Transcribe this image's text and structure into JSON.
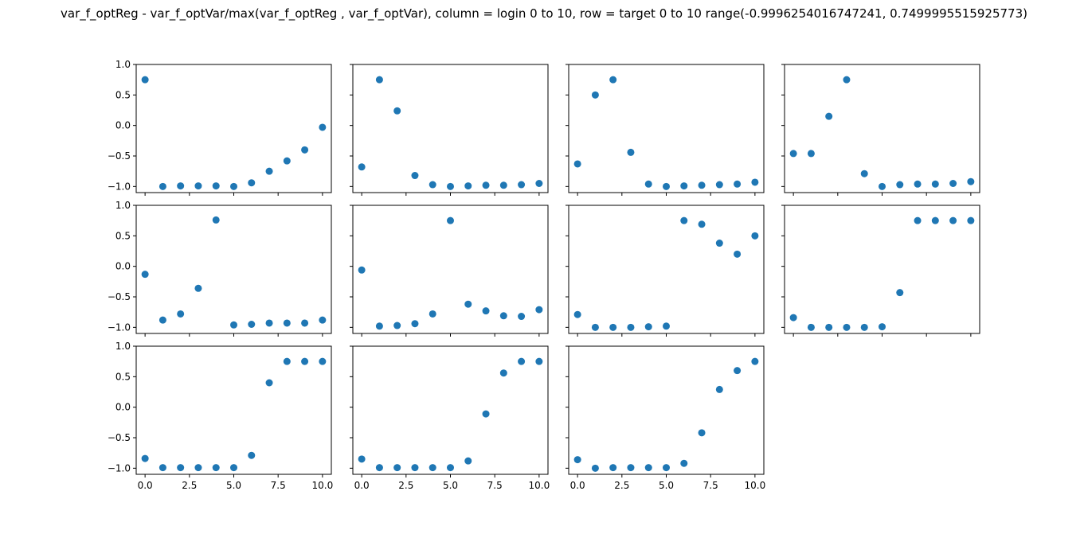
{
  "figure": {
    "title": "var_f_optReg - var_f_optVar/max(var_f_optReg , var_f_optVar), column = login 0 to 10, row = target 0 to 10 range(-0.9996254016747241, 0.7499995515925773)"
  },
  "chart_data": [
    {
      "type": "scatter",
      "x": [
        0,
        1,
        2,
        3,
        4,
        5,
        6,
        7,
        8,
        9,
        10
      ],
      "values": [
        0.75,
        -1.0,
        -0.99,
        -0.99,
        -0.99,
        -1.0,
        -0.94,
        -0.75,
        -0.58,
        -0.4,
        -0.03
      ],
      "xlim": [
        -0.5,
        10.5
      ],
      "ylim": [
        -1.1,
        1.0
      ]
    },
    {
      "type": "scatter",
      "x": [
        0,
        1,
        2,
        3,
        4,
        5,
        6,
        7,
        8,
        9,
        10
      ],
      "values": [
        -0.68,
        0.75,
        0.24,
        -0.82,
        -0.97,
        -1.0,
        -0.99,
        -0.98,
        -0.98,
        -0.97,
        -0.95
      ],
      "xlim": [
        -0.5,
        10.5
      ],
      "ylim": [
        -1.1,
        1.0
      ]
    },
    {
      "type": "scatter",
      "x": [
        0,
        1,
        2,
        3,
        4,
        5,
        6,
        7,
        8,
        9,
        10
      ],
      "values": [
        -0.63,
        0.5,
        0.75,
        -0.44,
        -0.96,
        -1.0,
        -0.99,
        -0.98,
        -0.97,
        -0.96,
        -0.93
      ],
      "xlim": [
        -0.5,
        10.5
      ],
      "ylim": [
        -1.1,
        1.0
      ]
    },
    {
      "type": "scatter",
      "x": [
        0,
        1,
        2,
        3,
        4,
        5,
        6,
        7,
        8,
        9,
        10
      ],
      "values": [
        -0.46,
        -0.46,
        0.15,
        0.75,
        -0.79,
        -1.0,
        -0.97,
        -0.96,
        -0.96,
        -0.95,
        -0.92
      ],
      "xlim": [
        -0.5,
        10.5
      ],
      "ylim": [
        -1.1,
        1.0
      ]
    },
    {
      "type": "scatter",
      "x": [
        0,
        1,
        2,
        3,
        4,
        5,
        6,
        7,
        8,
        9,
        10
      ],
      "values": [
        -0.13,
        -0.88,
        -0.78,
        -0.36,
        0.76,
        -0.96,
        -0.95,
        -0.93,
        -0.93,
        -0.93,
        -0.88
      ],
      "xlim": [
        -0.5,
        10.5
      ],
      "ylim": [
        -1.1,
        1.0
      ]
    },
    {
      "type": "scatter",
      "x": [
        0,
        1,
        2,
        3,
        4,
        5,
        6,
        7,
        8,
        9,
        10
      ],
      "values": [
        -0.06,
        -0.98,
        -0.97,
        -0.94,
        -0.78,
        0.75,
        -0.62,
        -0.73,
        -0.81,
        -0.82,
        -0.71
      ],
      "xlim": [
        -0.5,
        10.5
      ],
      "ylim": [
        -1.1,
        1.0
      ]
    },
    {
      "type": "scatter",
      "x": [
        0,
        1,
        2,
        3,
        4,
        5,
        6,
        7,
        8,
        9,
        10
      ],
      "values": [
        -0.79,
        -1.0,
        -1.0,
        -1.0,
        -0.99,
        -0.98,
        0.75,
        0.69,
        0.38,
        0.2,
        0.5
      ],
      "xlim": [
        -0.5,
        10.5
      ],
      "ylim": [
        -1.1,
        1.0
      ]
    },
    {
      "type": "scatter",
      "x": [
        0,
        1,
        2,
        3,
        4,
        5,
        6,
        7,
        8,
        9,
        10
      ],
      "values": [
        -0.84,
        -1.0,
        -1.0,
        -1.0,
        -1.0,
        -0.99,
        -0.43,
        0.75,
        0.75,
        0.75,
        0.75
      ],
      "xlim": [
        -0.5,
        10.5
      ],
      "ylim": [
        -1.1,
        1.0
      ]
    },
    {
      "type": "scatter",
      "x": [
        0,
        1,
        2,
        3,
        4,
        5,
        6,
        7,
        8,
        9,
        10
      ],
      "values": [
        -0.84,
        -0.99,
        -0.99,
        -0.99,
        -0.99,
        -0.99,
        -0.79,
        0.4,
        0.75,
        0.75,
        0.75
      ],
      "xlim": [
        -0.5,
        10.5
      ],
      "ylim": [
        -1.1,
        1.0
      ]
    },
    {
      "type": "scatter",
      "x": [
        0,
        1,
        2,
        3,
        4,
        5,
        6,
        7,
        8,
        9,
        10
      ],
      "values": [
        -0.85,
        -0.99,
        -0.99,
        -0.99,
        -0.99,
        -0.99,
        -0.88,
        -0.11,
        0.56,
        0.75,
        0.75
      ],
      "xlim": [
        -0.5,
        10.5
      ],
      "ylim": [
        -1.1,
        1.0
      ]
    },
    {
      "type": "scatter",
      "x": [
        0,
        1,
        2,
        3,
        4,
        5,
        6,
        7,
        8,
        9,
        10
      ],
      "values": [
        -0.86,
        -1.0,
        -0.99,
        -0.99,
        -0.99,
        -0.99,
        -0.92,
        -0.42,
        0.29,
        0.6,
        0.75
      ],
      "xlim": [
        -0.5,
        10.5
      ],
      "ylim": [
        -1.1,
        1.0
      ]
    }
  ],
  "axes": {
    "x_ticks": [
      0,
      2.5,
      5,
      7.5,
      10
    ],
    "x_tick_labels": [
      "0.0",
      "2.5",
      "5.0",
      "7.5",
      "10.0"
    ],
    "y_ticks": [
      1.0,
      0.5,
      0.0,
      -0.5,
      -1.0
    ],
    "y_tick_labels": [
      "1.0",
      "0.5",
      "0.0",
      "−0.5",
      "−1.0"
    ],
    "grid": false
  },
  "colors": {
    "marker": "#1f77b4",
    "axes": "#000000",
    "background": "#ffffff"
  }
}
